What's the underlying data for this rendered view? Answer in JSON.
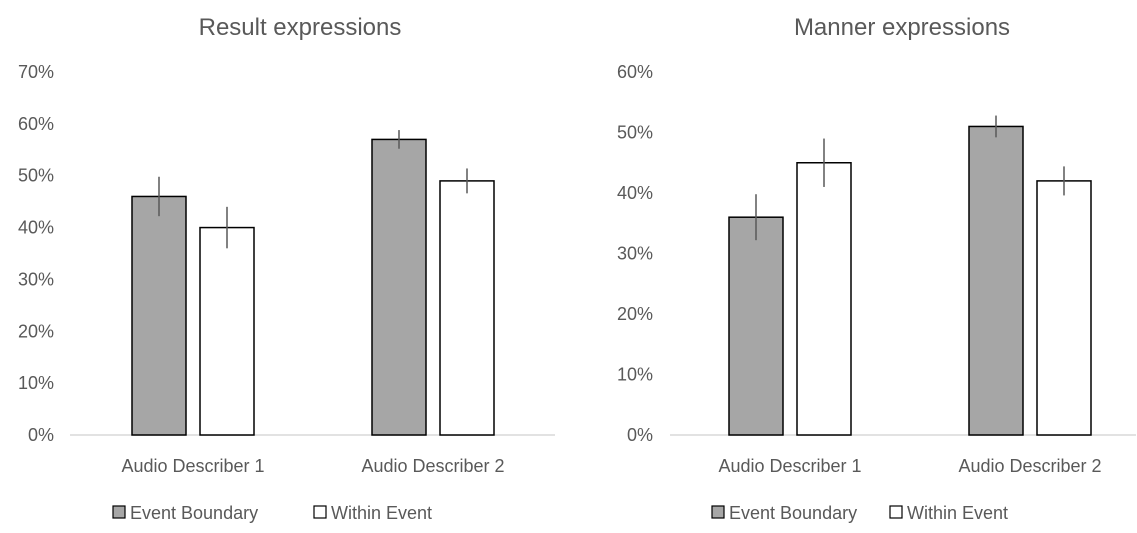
{
  "chart_data": [
    {
      "type": "bar",
      "title": "Result expressions",
      "categories": [
        "Audio Describer 1",
        "Audio Describer 2"
      ],
      "ylim": [
        0,
        70
      ],
      "yticks": [
        "0%",
        "10%",
        "20%",
        "30%",
        "40%",
        "50%",
        "60%",
        "70%"
      ],
      "grid": false,
      "legend_position": "bottom",
      "series": [
        {
          "name": "Event Boundary",
          "color": "#a6a6a6",
          "values": [
            46,
            57
          ],
          "errors": [
            3.8,
            1.8
          ]
        },
        {
          "name": "Within Event",
          "color": "#ffffff",
          "values": [
            40,
            49
          ],
          "errors": [
            4.0,
            2.4
          ]
        }
      ]
    },
    {
      "type": "bar",
      "title": "Manner expressions",
      "categories": [
        "Audio Describer 1",
        "Audio Describer 2"
      ],
      "ylim": [
        0,
        60
      ],
      "yticks": [
        "0%",
        "10%",
        "20%",
        "30%",
        "40%",
        "50%",
        "60%"
      ],
      "grid": false,
      "legend_position": "bottom",
      "series": [
        {
          "name": "Event Boundary",
          "color": "#a6a6a6",
          "values": [
            36,
            51
          ],
          "errors": [
            3.8,
            1.8
          ]
        },
        {
          "name": "Within Event",
          "color": "#ffffff",
          "values": [
            45,
            42
          ],
          "errors": [
            4.0,
            2.4
          ]
        }
      ]
    }
  ]
}
